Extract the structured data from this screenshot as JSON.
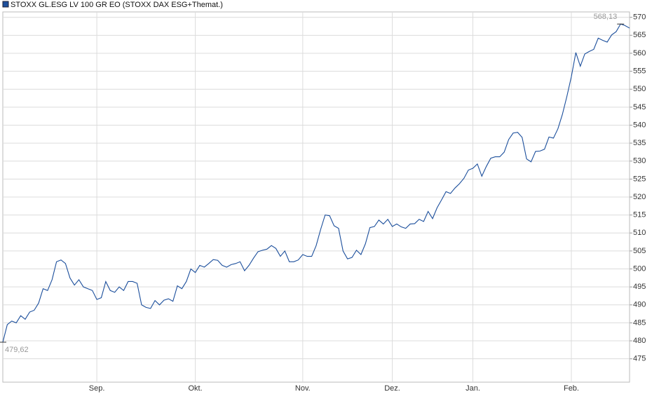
{
  "chart_data": {
    "type": "line",
    "series": [
      {
        "name": "STOXX GL.ESG LV 100 GR EO (STOXX DAX ESG+Themat.)",
        "color": "#1c4f9c",
        "values": [
          479.62,
          484.5,
          485.5,
          485,
          487,
          486,
          488,
          488.5,
          490.5,
          494.5,
          494,
          497,
          502,
          502.5,
          501.5,
          497.5,
          495.5,
          497,
          495,
          494.5,
          494,
          491.5,
          492,
          496.5,
          494,
          493.5,
          495,
          494,
          496.5,
          496.5,
          496,
          490,
          489.3,
          489,
          491.2,
          490,
          491.3,
          491.7,
          491,
          495.3,
          494.5,
          496.5,
          500,
          499,
          501,
          500.5,
          501.5,
          502.6,
          502.4,
          501,
          500.5,
          501.2,
          501.5,
          502,
          499.5,
          501,
          503,
          504.8,
          505.2,
          505.5,
          506.5,
          505.7,
          503.5,
          505,
          502,
          502,
          502.5,
          504,
          503.5,
          503.5,
          506.5,
          511,
          515,
          514.8,
          512,
          511.3,
          505,
          502.8,
          503.2,
          505.2,
          504,
          507,
          511.5,
          511.8,
          513.6,
          512.5,
          513.8,
          511.8,
          512.5,
          511.7,
          511.3,
          512.5,
          512.6,
          513.8,
          513.2,
          516,
          514,
          517,
          519.2,
          521.5,
          521,
          522.5,
          523.7,
          525.2,
          527.5,
          528,
          529.2,
          525.8,
          528.5,
          530.8,
          531.2,
          531.2,
          532.5,
          536,
          537.8,
          538,
          536.6,
          530.6,
          529.8,
          532.7,
          532.8,
          533.3,
          536.7,
          536.4,
          539,
          543,
          548,
          553.5,
          560.2,
          556.4,
          559.8,
          560.5,
          561.1,
          564.2,
          563.6,
          563.1,
          565.1,
          566,
          568.13,
          567.7,
          567
        ],
        "value_labels": [
          "479,62",
          null,
          null,
          null,
          null,
          null,
          null,
          null,
          null,
          null,
          null,
          null,
          null,
          null,
          null,
          null,
          null,
          null,
          null,
          null,
          null,
          null,
          null,
          null,
          null,
          null,
          null,
          null,
          null,
          null,
          null,
          null,
          null,
          null,
          null,
          null,
          null,
          null,
          null,
          null,
          null,
          null,
          null,
          null,
          null,
          null,
          null,
          null,
          null,
          null,
          null,
          null,
          null,
          null,
          null,
          null,
          null,
          null,
          null,
          null,
          null,
          null,
          null,
          null,
          null,
          null,
          null,
          null,
          null,
          null,
          null,
          null,
          null,
          null,
          null,
          null,
          null,
          null,
          null,
          null,
          null,
          null,
          null,
          null,
          null,
          null,
          null,
          null,
          null,
          null,
          null,
          null,
          null,
          null,
          null,
          null,
          null,
          null,
          null,
          null,
          null,
          null,
          null,
          null,
          null,
          null,
          null,
          null,
          null,
          null,
          null,
          null,
          null,
          null,
          null,
          null,
          null,
          null,
          null,
          null,
          null,
          null,
          null,
          null,
          null,
          null,
          null,
          null,
          null,
          null,
          null,
          null,
          null,
          null,
          null,
          null,
          null,
          null,
          "568,13",
          null,
          null
        ]
      }
    ],
    "categories": [
      null,
      null,
      null,
      null,
      null,
      null,
      null,
      null,
      null,
      null,
      null,
      null,
      null,
      null,
      null,
      null,
      null,
      null,
      null,
      null,
      null,
      "Sep.",
      null,
      null,
      null,
      null,
      null,
      null,
      null,
      null,
      null,
      null,
      null,
      null,
      null,
      null,
      null,
      null,
      null,
      null,
      null,
      null,
      null,
      "Okt.",
      null,
      null,
      null,
      null,
      null,
      null,
      null,
      null,
      null,
      null,
      null,
      null,
      null,
      null,
      null,
      null,
      null,
      null,
      null,
      null,
      null,
      null,
      null,
      "Nov.",
      null,
      null,
      null,
      null,
      null,
      null,
      null,
      null,
      null,
      null,
      null,
      null,
      null,
      null,
      null,
      null,
      null,
      null,
      null,
      "Dez.",
      null,
      null,
      null,
      null,
      null,
      null,
      null,
      null,
      null,
      null,
      null,
      null,
      null,
      null,
      null,
      null,
      null,
      "Jan.",
      null,
      null,
      null,
      null,
      null,
      null,
      null,
      null,
      null,
      null,
      null,
      null,
      null,
      null,
      null,
      null,
      null,
      null,
      null,
      null,
      null,
      "Feb.",
      null,
      null,
      null,
      null,
      null,
      null,
      null,
      null,
      null,
      null,
      null,
      null,
      null
    ],
    "ylim": [
      468.5,
      571.5
    ],
    "yticks": [
      475,
      480,
      485,
      490,
      495,
      500,
      505,
      510,
      515,
      520,
      525,
      530,
      535,
      540,
      545,
      550,
      555,
      560,
      565,
      570
    ],
    "grid": true
  }
}
